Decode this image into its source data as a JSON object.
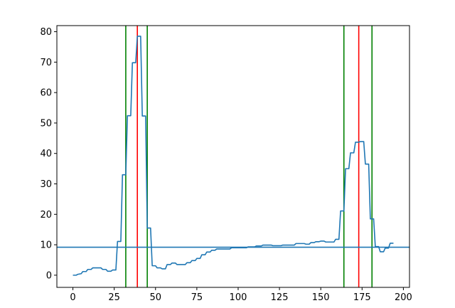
{
  "chart_data": {
    "type": "line",
    "title": "",
    "xlabel": "",
    "ylabel": "",
    "xlim": [
      -9.7,
      203.7
    ],
    "ylim": [
      -4.0,
      82.0
    ],
    "xticks": [
      0,
      25,
      50,
      75,
      100,
      125,
      150,
      175,
      200
    ],
    "yticks": [
      0,
      10,
      20,
      30,
      40,
      50,
      60,
      70,
      80
    ],
    "xtick_labels": [
      "0",
      "25",
      "50",
      "75",
      "100",
      "125",
      "150",
      "175",
      "200"
    ],
    "ytick_labels": [
      "0",
      "10",
      "20",
      "30",
      "40",
      "50",
      "60",
      "70",
      "80"
    ],
    "grid": false,
    "legend": "none",
    "series": [
      {
        "color": "#1f77b4",
        "points": [
          [
            0,
            0
          ],
          [
            2,
            0
          ],
          [
            3,
            0.3
          ],
          [
            5,
            0.5
          ],
          [
            6,
            1.2
          ],
          [
            8,
            1.2
          ],
          [
            9,
            1.9
          ],
          [
            11,
            1.9
          ],
          [
            12,
            2.4
          ],
          [
            17,
            2.4
          ],
          [
            18,
            1.9
          ],
          [
            20,
            1.9
          ],
          [
            21,
            1.3
          ],
          [
            23,
            1.3
          ],
          [
            24,
            1.7
          ],
          [
            26,
            1.7
          ],
          [
            27,
            11.1
          ],
          [
            29,
            11.1
          ],
          [
            30,
            33.0
          ],
          [
            32,
            33.0
          ],
          [
            33,
            52.4
          ],
          [
            35,
            52.4
          ],
          [
            36,
            69.8
          ],
          [
            38,
            69.8
          ],
          [
            39,
            78.5
          ],
          [
            41,
            78.5
          ],
          [
            42,
            52.3
          ],
          [
            44,
            52.3
          ],
          [
            45,
            15.5
          ],
          [
            47,
            15.5
          ],
          [
            48,
            3.1
          ],
          [
            50,
            3.1
          ],
          [
            51,
            2.4
          ],
          [
            53,
            2.4
          ],
          [
            54,
            2.1
          ],
          [
            56,
            2.1
          ],
          [
            57,
            3.5
          ],
          [
            59,
            3.5
          ],
          [
            60,
            4.0
          ],
          [
            62,
            4.0
          ],
          [
            63,
            3.5
          ],
          [
            68,
            3.5
          ],
          [
            69,
            4.1
          ],
          [
            71,
            4.1
          ],
          [
            72,
            4.8
          ],
          [
            74,
            4.8
          ],
          [
            75,
            5.5
          ],
          [
            77,
            5.5
          ],
          [
            78,
            6.7
          ],
          [
            80,
            6.7
          ],
          [
            81,
            7.6
          ],
          [
            83,
            7.6
          ],
          [
            84,
            8.2
          ],
          [
            86,
            8.2
          ],
          [
            87,
            8.6
          ],
          [
            95,
            8.6
          ],
          [
            96,
            9.0
          ],
          [
            105,
            9.0
          ],
          [
            106,
            9.3
          ],
          [
            110,
            9.3
          ],
          [
            111,
            9.6
          ],
          [
            114,
            9.6
          ],
          [
            115,
            9.9
          ],
          [
            120,
            9.9
          ],
          [
            121,
            9.7
          ],
          [
            126,
            9.7
          ],
          [
            127,
            9.9
          ],
          [
            134,
            9.9
          ],
          [
            135,
            10.4
          ],
          [
            140,
            10.4
          ],
          [
            141,
            10.2
          ],
          [
            143,
            10.2
          ],
          [
            144,
            10.7
          ],
          [
            146,
            10.7
          ],
          [
            147,
            11.0
          ],
          [
            149,
            11.0
          ],
          [
            150,
            11.2
          ],
          [
            152,
            11.2
          ],
          [
            153,
            10.9
          ],
          [
            158,
            10.9
          ],
          [
            159,
            11.8
          ],
          [
            161,
            11.8
          ],
          [
            162,
            21.1
          ],
          [
            164,
            21.1
          ],
          [
            165,
            35.0
          ],
          [
            167,
            35.0
          ],
          [
            168,
            40.2
          ],
          [
            170,
            40.2
          ],
          [
            171,
            43.7
          ],
          [
            173,
            43.7
          ],
          [
            174,
            43.9
          ],
          [
            176,
            43.9
          ],
          [
            177,
            36.5
          ],
          [
            179,
            36.5
          ],
          [
            180,
            18.5
          ],
          [
            182,
            18.5
          ],
          [
            183,
            9.4
          ],
          [
            185,
            9.4
          ],
          [
            186,
            7.7
          ],
          [
            188,
            7.7
          ],
          [
            189,
            8.9
          ],
          [
            191,
            8.9
          ],
          [
            192,
            10.5
          ],
          [
            194,
            10.5
          ]
        ]
      }
    ],
    "hlines": [
      {
        "y": 9.2,
        "color": "#1f77b4"
      }
    ],
    "vlines": [
      {
        "x": 32,
        "color": "#008000"
      },
      {
        "x": 39,
        "color": "#ff0000"
      },
      {
        "x": 45,
        "color": "#008000"
      },
      {
        "x": 164,
        "color": "#008000"
      },
      {
        "x": 173,
        "color": "#ff0000"
      },
      {
        "x": 181,
        "color": "#008000"
      }
    ]
  }
}
